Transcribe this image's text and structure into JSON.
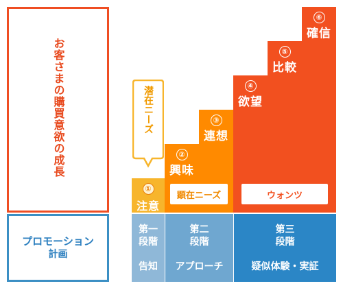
{
  "growth_label": "お客さまの購買意欲の成長",
  "promotion_label_line1": "プロモーション",
  "promotion_label_line2": "計画",
  "latent_needs": "潜在ニーズ",
  "overt_needs": "顕在ニーズ",
  "wants": "ウォンツ",
  "steps": [
    {
      "number": "①",
      "label": "注意"
    },
    {
      "number": "②",
      "label": "興味"
    },
    {
      "number": "③",
      "label": "連想"
    },
    {
      "number": "④",
      "label": "欲望"
    },
    {
      "number": "⑤",
      "label": "比較"
    },
    {
      "number": "⑥",
      "label": "確信"
    }
  ],
  "phases": [
    {
      "title_line1": "第一",
      "title_line2": "段階",
      "action": "告知"
    },
    {
      "title_line1": "第二",
      "title_line2": "段階",
      "action": "アプローチ"
    },
    {
      "title_line1": "第三",
      "title_line2": "段階",
      "action": "疑似体験・実証"
    }
  ],
  "colors": {
    "growth_border": "#ef4e23",
    "promo_border": "#3b8fc4",
    "stair_orange": "#ff8a00",
    "stair_red": "#f2501f",
    "stair_yellow": "#f7b52c",
    "phase1": "#8fb8d8",
    "phase2": "#6fa7d0",
    "phase3": "#2b86c6"
  }
}
